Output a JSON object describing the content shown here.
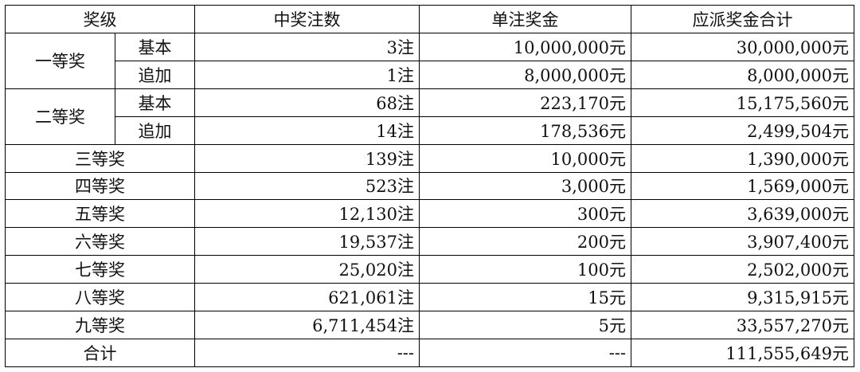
{
  "headers": {
    "level": "奖级",
    "winners": "中奖注数",
    "prize": "单注奖金",
    "total": "应派奖金合计"
  },
  "first": {
    "name": "一等奖",
    "basic": {
      "label": "基本",
      "winners": "3注",
      "prize": "10,000,000元",
      "total": "30,000,000元"
    },
    "extra": {
      "label": "追加",
      "winners": "1注",
      "prize": "8,000,000元",
      "total": "8,000,000元"
    }
  },
  "second": {
    "name": "二等奖",
    "basic": {
      "label": "基本",
      "winners": "68注",
      "prize": "223,170元",
      "total": "15,175,560元"
    },
    "extra": {
      "label": "追加",
      "winners": "14注",
      "prize": "178,536元",
      "total": "2,499,504元"
    }
  },
  "rows": [
    {
      "name": "三等奖",
      "winners": "139注",
      "prize": "10,000元",
      "total": "1,390,000元"
    },
    {
      "name": "四等奖",
      "winners": "523注",
      "prize": "3,000元",
      "total": "1,569,000元"
    },
    {
      "name": "五等奖",
      "winners": "12,130注",
      "prize": "300元",
      "total": "3,639,000元"
    },
    {
      "name": "六等奖",
      "winners": "19,537注",
      "prize": "200元",
      "total": "3,907,400元"
    },
    {
      "name": "七等奖",
      "winners": "25,020注",
      "prize": "100元",
      "total": "2,502,000元"
    },
    {
      "name": "八等奖",
      "winners": "621,061注",
      "prize": "15元",
      "total": "9,315,915元"
    },
    {
      "name": "九等奖",
      "winners": "6,711,454注",
      "prize": "5元",
      "total": "33,557,270元"
    }
  ],
  "sum": {
    "name": "合计",
    "winners": "---",
    "prize": "---",
    "total": "111,555,649元"
  }
}
